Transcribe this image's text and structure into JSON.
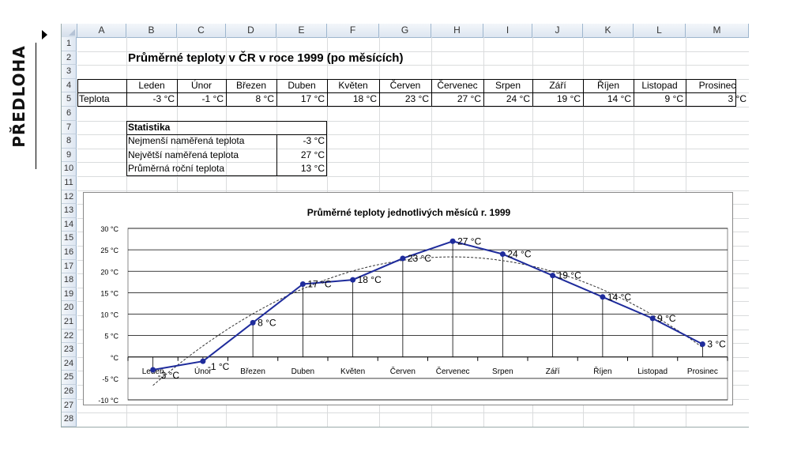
{
  "side_label": "PŘEDLOHA",
  "columns": [
    "A",
    "B",
    "C",
    "D",
    "E",
    "F",
    "G",
    "H",
    "I",
    "J",
    "K",
    "L",
    "M"
  ],
  "rows": [
    "1",
    "2",
    "3",
    "4",
    "5",
    "6",
    "7",
    "8",
    "9",
    "10",
    "11",
    "12",
    "13",
    "14",
    "15",
    "16",
    "17",
    "18",
    "19",
    "20",
    "21",
    "22",
    "23",
    "24",
    "25",
    "26",
    "27",
    "28"
  ],
  "sheet": {
    "title": "Průměrné teploty v ČR v roce 1999 (po měsících)",
    "row_label": "Teplota",
    "months": [
      "Leden",
      "Únor",
      "Březen",
      "Duben",
      "Květen",
      "Červen",
      "Červenec",
      "Srpen",
      "Září",
      "Říjen",
      "Listopad",
      "Prosinec"
    ],
    "temps_text": [
      "-3 °C",
      "-1 °C",
      "8 °C",
      "17 °C",
      "18 °C",
      "23 °C",
      "27 °C",
      "24 °C",
      "19 °C",
      "14 °C",
      "9 °C",
      "3 °C"
    ],
    "stats": {
      "header": "Statistika",
      "rows": [
        {
          "label": "Nejmenší naměřená teplota",
          "value": "-3 °C"
        },
        {
          "label": "Největší naměřená teplota",
          "value": "27 °C"
        },
        {
          "label": "Průměrná roční teplota",
          "value": "13 °C"
        }
      ]
    }
  },
  "chart_data": {
    "type": "line",
    "title": "Průměrné teploty jednotlivých měsíců r. 1999",
    "categories": [
      "Leden",
      "Únor",
      "Březen",
      "Duben",
      "Květen",
      "Červen",
      "Červenec",
      "Srpen",
      "Září",
      "Říjen",
      "Listopad",
      "Prosinec"
    ],
    "values": [
      -3,
      -1,
      8,
      17,
      18,
      23,
      27,
      24,
      19,
      14,
      9,
      3
    ],
    "data_labels": [
      "-3 °C",
      "-1 °C",
      "8 °C",
      "17 °C",
      "18 °C",
      "23 °C",
      "27 °C",
      "24 °C",
      "19 °C",
      "14 °C",
      "9 °C",
      "3 °C"
    ],
    "y_ticks": [
      "-10 °C",
      "-5 °C",
      "°C",
      "5 °C",
      "10 °C",
      "15 °C",
      "20 °C",
      "25 °C",
      "30 °C"
    ],
    "ylim": [
      -10,
      30
    ],
    "grid": true,
    "trendline": "polynomial",
    "line_color": "#1f2c9c",
    "trend_color": "#333333"
  }
}
